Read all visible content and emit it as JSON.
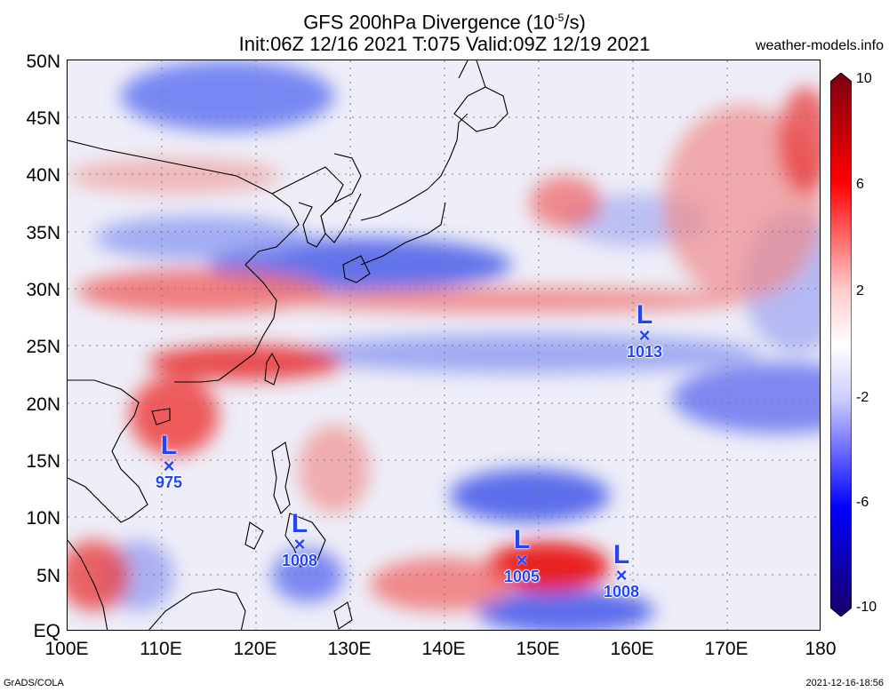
{
  "header": {
    "title_line1": "GFS 200hPa Divergence (10⁻⁵/s)",
    "title_line2": "Init:06Z 12/16 2021 T:075 Valid:09Z 12/19 2021",
    "site": "weather-models.info"
  },
  "axes": {
    "y_labels": [
      "50N",
      "45N",
      "40N",
      "35N",
      "30N",
      "25N",
      "20N",
      "15N",
      "10N",
      "5N",
      "EQ"
    ],
    "x_labels": [
      "100E",
      "110E",
      "120E",
      "130E",
      "140E",
      "150E",
      "160E",
      "170E",
      "180"
    ]
  },
  "colorbar": {
    "labels": [
      "10",
      "6",
      "2",
      "-2",
      "-6",
      "-10"
    ],
    "colors": [
      "#7a0010",
      "#ff0000",
      "#ffcccc",
      "#ffffff",
      "#ccccff",
      "#0000ff",
      "#1a0066"
    ]
  },
  "lows": [
    {
      "symbol": "L",
      "marker": "×",
      "pressure": "975"
    },
    {
      "symbol": "L",
      "marker": "×",
      "pressure": "1008"
    },
    {
      "symbol": "L",
      "marker": "×",
      "pressure": "1005"
    },
    {
      "symbol": "L",
      "marker": "×",
      "pressure": "1008"
    },
    {
      "symbol": "L",
      "marker": "×",
      "pressure": "1013"
    }
  ],
  "footer": {
    "left": "GrADS/COLA",
    "right": "2021-12-16-18:56"
  }
}
